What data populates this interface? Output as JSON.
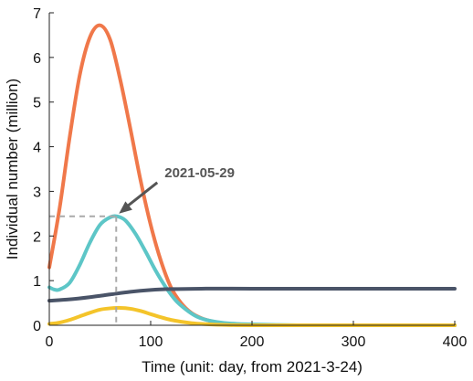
{
  "chart_data": {
    "type": "line",
    "title": "",
    "xlabel": "Time (unit: day, from 2021-3-24)",
    "ylabel": "Individual number (million)",
    "xlim": [
      0,
      400
    ],
    "ylim": [
      0,
      7
    ],
    "xticks": [
      0,
      100,
      200,
      300,
      400
    ],
    "yticks": [
      0,
      1,
      2,
      3,
      4,
      5,
      6,
      7
    ],
    "grid": false,
    "legend": "none",
    "series": [
      {
        "color": "#f0784a",
        "points": [
          [
            0,
            1.3
          ],
          [
            10,
            2.6
          ],
          [
            20,
            4.2
          ],
          [
            30,
            5.6
          ],
          [
            40,
            6.45
          ],
          [
            50,
            6.72
          ],
          [
            60,
            6.4
          ],
          [
            70,
            5.5
          ],
          [
            80,
            4.4
          ],
          [
            90,
            3.25
          ],
          [
            100,
            2.25
          ],
          [
            110,
            1.45
          ],
          [
            120,
            0.85
          ],
          [
            130,
            0.5
          ],
          [
            140,
            0.28
          ],
          [
            150,
            0.16
          ],
          [
            160,
            0.09
          ],
          [
            170,
            0.05
          ],
          [
            180,
            0.03
          ],
          [
            190,
            0.02
          ],
          [
            200,
            0.01
          ],
          [
            220,
            0.0
          ],
          [
            250,
            0.0
          ],
          [
            300,
            0.0
          ],
          [
            350,
            0.0
          ],
          [
            400,
            0.0
          ]
        ]
      },
      {
        "color": "#5dc6c7",
        "points": [
          [
            0,
            0.85
          ],
          [
            5,
            0.8
          ],
          [
            10,
            0.8
          ],
          [
            20,
            0.95
          ],
          [
            30,
            1.35
          ],
          [
            40,
            1.85
          ],
          [
            50,
            2.25
          ],
          [
            60,
            2.42
          ],
          [
            67,
            2.44
          ],
          [
            75,
            2.35
          ],
          [
            85,
            2.05
          ],
          [
            95,
            1.65
          ],
          [
            105,
            1.22
          ],
          [
            115,
            0.85
          ],
          [
            125,
            0.55
          ],
          [
            135,
            0.35
          ],
          [
            145,
            0.2
          ],
          [
            155,
            0.12
          ],
          [
            170,
            0.06
          ],
          [
            185,
            0.03
          ],
          [
            200,
            0.02
          ],
          [
            220,
            0.01
          ],
          [
            250,
            0.0
          ],
          [
            300,
            0.0
          ],
          [
            350,
            0.0
          ],
          [
            400,
            0.0
          ]
        ]
      },
      {
        "color": "#4a5468",
        "points": [
          [
            0,
            0.55
          ],
          [
            20,
            0.58
          ],
          [
            40,
            0.63
          ],
          [
            60,
            0.69
          ],
          [
            80,
            0.75
          ],
          [
            100,
            0.79
          ],
          [
            120,
            0.81
          ],
          [
            150,
            0.82
          ],
          [
            200,
            0.82
          ],
          [
            300,
            0.82
          ],
          [
            400,
            0.82
          ]
        ]
      },
      {
        "color": "#f4c42a",
        "points": [
          [
            0,
            0.03
          ],
          [
            10,
            0.06
          ],
          [
            20,
            0.12
          ],
          [
            30,
            0.2
          ],
          [
            40,
            0.28
          ],
          [
            50,
            0.35
          ],
          [
            60,
            0.38
          ],
          [
            70,
            0.39
          ],
          [
            80,
            0.37
          ],
          [
            90,
            0.32
          ],
          [
            100,
            0.25
          ],
          [
            110,
            0.18
          ],
          [
            120,
            0.12
          ],
          [
            130,
            0.08
          ],
          [
            140,
            0.05
          ],
          [
            150,
            0.03
          ],
          [
            170,
            0.01
          ],
          [
            200,
            0.0
          ],
          [
            300,
            0.0
          ],
          [
            400,
            0.0
          ]
        ]
      }
    ],
    "annotation": {
      "text": "2021-05-29",
      "x": 66,
      "y": 2.44,
      "color": "#555555"
    }
  }
}
